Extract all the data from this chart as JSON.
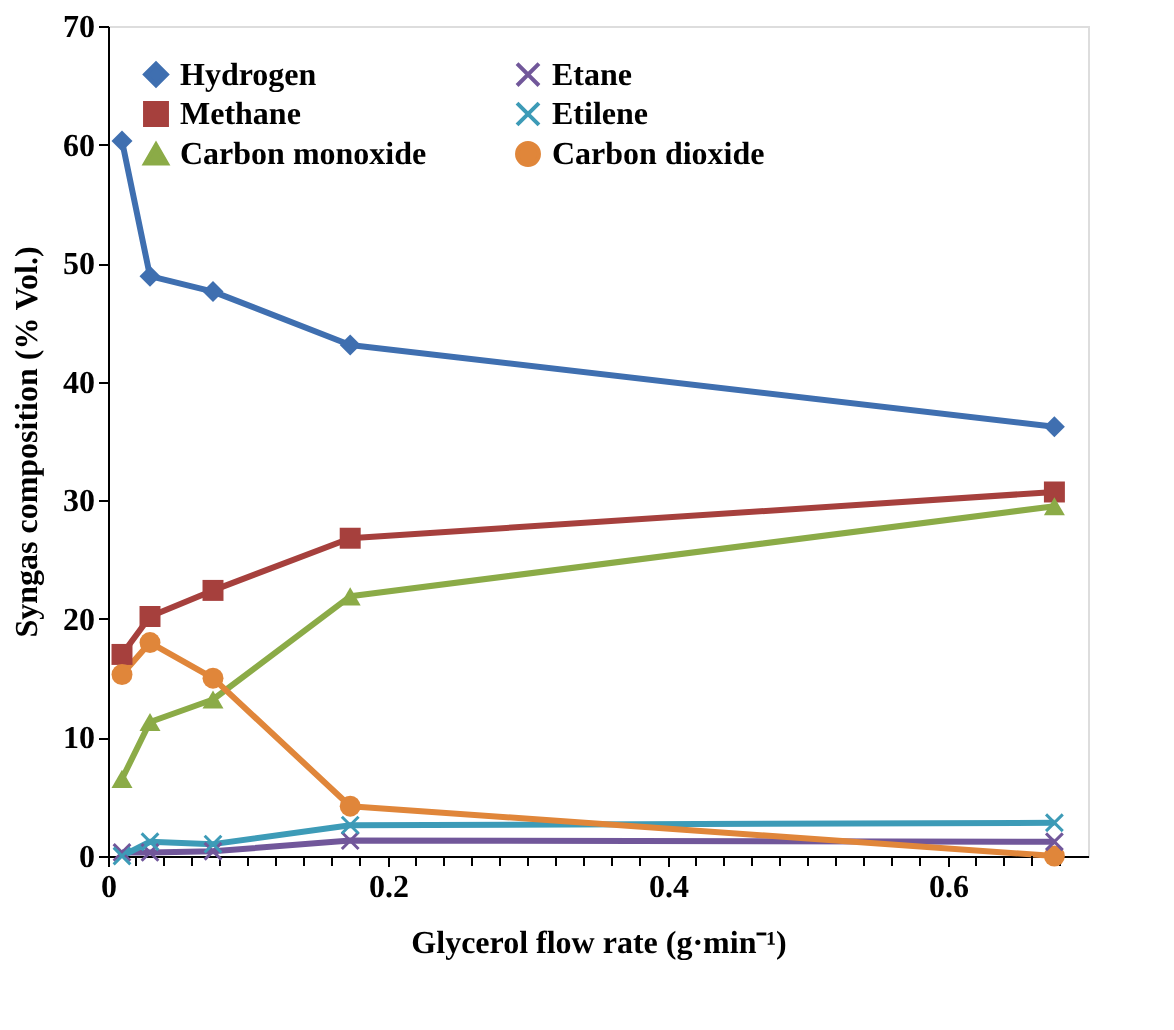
{
  "chart_data": {
    "type": "line",
    "xlabel": "Glycerol flow rate (g·min⁻¹)",
    "ylabel": "Syngas composition  (% Vol.)",
    "x": [
      0.01,
      0.03,
      0.075,
      0.173,
      0.676
    ],
    "xlim": [
      0,
      0.7
    ],
    "xticks": [
      0,
      {
        "value": 0.02,
        "label": null
      },
      {
        "value": 0.04,
        "label": null
      },
      {
        "value": 0.06,
        "label": null
      },
      {
        "value": 0.08,
        "label": null
      },
      {
        "value": 0.1,
        "label": null
      },
      {
        "value": 0.12,
        "label": null
      },
      {
        "value": 0.14,
        "label": null
      },
      {
        "value": 0.16,
        "label": null
      },
      {
        "value": 0.18,
        "label": null
      },
      0.2,
      {
        "value": 0.22,
        "label": null
      },
      {
        "value": 0.24,
        "label": null
      },
      {
        "value": 0.26,
        "label": null
      },
      {
        "value": 0.28,
        "label": null
      },
      {
        "value": 0.3,
        "label": null
      },
      {
        "value": 0.32,
        "label": null
      },
      {
        "value": 0.34,
        "label": null
      },
      {
        "value": 0.36,
        "label": null
      },
      {
        "value": 0.38,
        "label": null
      },
      0.4,
      {
        "value": 0.42,
        "label": null
      },
      {
        "value": 0.44,
        "label": null
      },
      {
        "value": 0.46,
        "label": null
      },
      {
        "value": 0.48,
        "label": null
      },
      {
        "value": 0.5,
        "label": null
      },
      {
        "value": 0.52,
        "label": null
      },
      {
        "value": 0.54,
        "label": null
      },
      {
        "value": 0.56,
        "label": null
      },
      {
        "value": 0.58,
        "label": null
      },
      0.6,
      {
        "value": 0.62,
        "label": null
      },
      {
        "value": 0.64,
        "label": null
      },
      {
        "value": 0.66,
        "label": null
      },
      {
        "value": 0.68,
        "label": null
      }
    ],
    "ylim": [
      0,
      70
    ],
    "yticks": [
      0,
      10,
      20,
      30,
      40,
      50,
      60,
      70
    ],
    "grid": false,
    "legend": "top",
    "line_style": "solid",
    "series": [
      {
        "name": "Hydrogen",
        "color": "#3f6fb0",
        "marker": "diamond",
        "values": [
          60.3,
          48.9,
          47.6,
          43.1,
          36.2
        ]
      },
      {
        "name": "Methane",
        "color": "#a6403d",
        "marker": "square",
        "values": [
          17.0,
          20.2,
          22.4,
          26.8,
          30.7
        ]
      },
      {
        "name": "Carbon monoxide",
        "color": "#8bab47",
        "marker": "triangle",
        "values": [
          6.5,
          11.3,
          13.2,
          21.9,
          29.5
        ]
      },
      {
        "name": "Etane",
        "color": "#71579a",
        "marker": "cross",
        "values": [
          0.3,
          0.3,
          0.4,
          1.3,
          1.2
        ]
      },
      {
        "name": "Etilene",
        "color": "#3d9bb7",
        "marker": "cross",
        "values": [
          0.0,
          1.2,
          1.0,
          2.6,
          2.8
        ]
      },
      {
        "name": "Carbon dioxide",
        "color": "#e0863a",
        "marker": "circle",
        "values": [
          15.3,
          18.0,
          15.0,
          4.2,
          0.0
        ]
      }
    ]
  }
}
